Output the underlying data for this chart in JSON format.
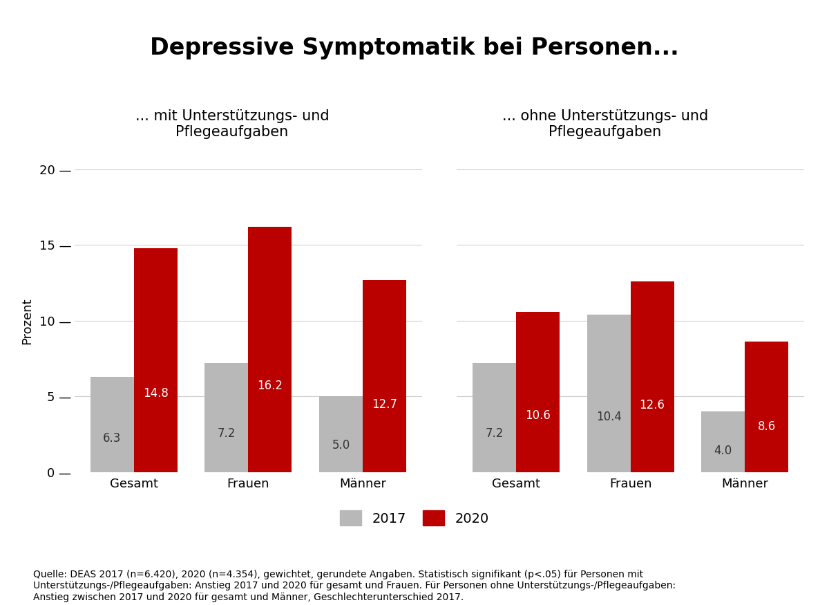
{
  "title": "Depressive Symptomatik bei Personen...",
  "subtitle_left": "... mit Unterstützungs- und\nPflegeaufgaben",
  "subtitle_right": "... ohne Unterstützungs- und\nPflegeaufgaben",
  "ylabel": "Prozent",
  "ylim": [
    0,
    20
  ],
  "yticks": [
    0,
    5,
    10,
    15,
    20
  ],
  "categories": [
    "Gesamt",
    "Frauen",
    "Männer"
  ],
  "group_left": {
    "values_2017": [
      6.3,
      7.2,
      5.0
    ],
    "values_2020": [
      14.8,
      16.2,
      12.7
    ]
  },
  "group_right": {
    "values_2017": [
      7.2,
      10.4,
      4.0
    ],
    "values_2020": [
      10.6,
      12.6,
      8.6
    ]
  },
  "color_2017": "#b8b8b8",
  "color_2020": "#bb0000",
  "bar_width": 0.38,
  "legend_labels": [
    "2017",
    "2020"
  ],
  "source_text": "Quelle: DEAS 2017 (n=6.420), 2020 (n=4.354), gewichtet, gerundete Angaben. Statistisch signifikant (p<.05) für Personen mit\nUnterstützungs-/Pflegeaufgaben: Anstieg 2017 und 2020 für gesamt und Frauen. Für Personen ohne Unterstützungs-/Pflegeaufgaben:\nAnstieg zwischen 2017 und 2020 für gesamt und Männer, Geschlechterunterschied 2017.",
  "background_color": "#ffffff",
  "title_fontsize": 24,
  "subtitle_fontsize": 15,
  "label_fontsize": 13,
  "tick_fontsize": 13,
  "bar_label_fontsize": 12,
  "source_fontsize": 10,
  "legend_fontsize": 14
}
